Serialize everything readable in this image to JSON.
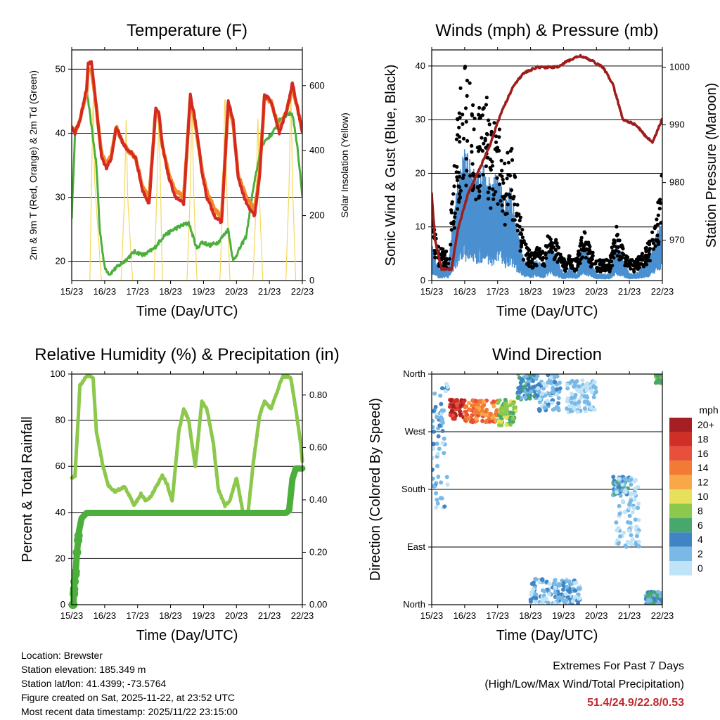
{
  "colors": {
    "t2m": "#d42a20",
    "t9m": "#f08b2e",
    "td2m": "#4caf3c",
    "solar": "#f4d85a",
    "wind": "#4a8fd0",
    "gust": "#000000",
    "pressure": "#9e1c1c",
    "rh": "#8cc84b",
    "precip": "#4caf3c",
    "extremes": "#c0282d"
  },
  "chart_data": [
    {
      "id": "temperature",
      "type": "line",
      "title": "Temperature (F)",
      "xlabel": "Time (Day/UTC)",
      "ylabel": "2m & 9m T (Red, Orange) & 2m Td (Green)",
      "ylabel_right": "Solar Insolation (Yellow)",
      "x_ticks": [
        "15/23",
        "16/23",
        "17/23",
        "18/23",
        "19/23",
        "20/23",
        "21/23",
        "22/23"
      ],
      "xlim": [
        0,
        7
      ],
      "ylim": [
        17,
        53
      ],
      "y_ticks": [
        "20",
        "30",
        "40",
        "50"
      ],
      "y_tick_values": [
        20,
        30,
        40,
        50
      ],
      "ylim_right": [
        0,
        710
      ],
      "y_ticks_right": [
        "0",
        "200",
        "400",
        "600"
      ],
      "y_tick_values_right": [
        0,
        200,
        400,
        600
      ],
      "grid": true,
      "series": [
        {
          "name": "2m T",
          "x": [
            0,
            0.1,
            0.25,
            0.45,
            0.5,
            0.6,
            0.75,
            0.9,
            1.05,
            1.2,
            1.35,
            1.55,
            1.75,
            1.8,
            1.95,
            2.15,
            2.35,
            2.55,
            2.65,
            2.75,
            2.95,
            3.15,
            3.4,
            3.6,
            3.75,
            3.95,
            4.1,
            4.35,
            4.55,
            4.75,
            4.9,
            5.05,
            5.3,
            5.55,
            5.7,
            5.85,
            6.05,
            6.3,
            6.55,
            6.7,
            6.85,
            7.0
          ],
          "values": [
            41,
            40,
            42,
            47,
            51,
            51,
            44,
            36.5,
            34.5,
            36,
            41,
            38.5,
            37,
            37,
            36,
            31,
            29,
            44,
            43,
            38,
            33,
            30,
            29,
            46,
            42,
            34,
            30,
            27,
            26,
            45,
            42,
            33,
            29,
            27,
            33,
            46,
            45,
            40,
            44,
            48,
            44,
            40
          ]
        },
        {
          "name": "9m T",
          "x": [
            0,
            0.1,
            0.25,
            0.45,
            0.5,
            0.6,
            0.75,
            0.9,
            1.05,
            1.2,
            1.35,
            1.55,
            1.75,
            1.8,
            1.95,
            2.15,
            2.35,
            2.55,
            2.65,
            2.75,
            2.95,
            3.15,
            3.4,
            3.6,
            3.75,
            3.95,
            4.1,
            4.35,
            4.55,
            4.75,
            4.9,
            5.05,
            5.3,
            5.55,
            5.7,
            5.85,
            6.05,
            6.3,
            6.55,
            6.7,
            6.85,
            7.0
          ],
          "values": [
            41,
            40,
            42,
            46.5,
            50,
            50,
            44,
            37,
            35,
            36.5,
            41,
            38.5,
            37,
            37,
            36,
            31.5,
            30,
            43.5,
            42.5,
            38,
            33.5,
            31,
            30,
            45.5,
            41.5,
            34.5,
            31,
            28,
            27,
            44.5,
            41.5,
            33.5,
            30,
            28,
            33.5,
            45.5,
            45,
            40.5,
            44,
            47,
            44,
            40.5
          ]
        },
        {
          "name": "2m Td",
          "x": [
            0,
            0.1,
            0.25,
            0.45,
            0.55,
            0.75,
            0.85,
            1.0,
            1.15,
            1.35,
            1.6,
            1.9,
            2.2,
            2.5,
            2.8,
            3.1,
            3.3,
            3.55,
            3.8,
            3.95,
            4.2,
            4.45,
            4.6,
            4.75,
            4.9,
            5.1,
            5.3,
            5.5,
            5.75,
            5.9,
            6.1,
            6.3,
            6.55,
            6.7,
            6.85,
            7.0
          ],
          "values": [
            27,
            40,
            42,
            47,
            43,
            35,
            25,
            19,
            18,
            19,
            20,
            21.5,
            21,
            22,
            24,
            25,
            25.5,
            26,
            22,
            23,
            22.5,
            23,
            24,
            25,
            20,
            22,
            24,
            31,
            38,
            39,
            40,
            42,
            43,
            43,
            38,
            30
          ]
        },
        {
          "name": "Solar Insolation",
          "axis": "right",
          "x": [
            0.55,
            0.6,
            0.65,
            0.7,
            0.9,
            1.5,
            1.6,
            1.65,
            1.7,
            1.85,
            2.5,
            2.58,
            2.65,
            2.75,
            3.5,
            3.6,
            3.65,
            3.7,
            3.8,
            4.5,
            4.6,
            4.65,
            4.7,
            4.8,
            5.5,
            5.6,
            5.65,
            5.7,
            5.8,
            6.5,
            6.6,
            6.65,
            6.7,
            6.8
          ],
          "values": [
            0,
            300,
            580,
            300,
            0,
            0,
            250,
            500,
            250,
            0,
            0,
            260,
            520,
            0,
            0,
            280,
            560,
            280,
            0,
            0,
            300,
            600,
            300,
            0,
            0,
            250,
            520,
            250,
            0,
            0,
            300,
            600,
            300,
            0
          ]
        }
      ]
    },
    {
      "id": "winds",
      "type": "scatter",
      "title": "Winds (mph) & Pressure (mb)",
      "xlabel": "Time (Day/UTC)",
      "ylabel": "Sonic Wind & Gust (Blue, Black)",
      "ylabel_right": "Station Pressure (Maroon)",
      "x_ticks": [
        "15/23",
        "16/23",
        "17/23",
        "18/23",
        "19/23",
        "20/23",
        "21/23",
        "22/23"
      ],
      "xlim": [
        0,
        7
      ],
      "ylim": [
        0,
        43
      ],
      "y_ticks": [
        "0",
        "10",
        "20",
        "30",
        "40"
      ],
      "y_tick_values": [
        0,
        10,
        20,
        30,
        40
      ],
      "ylim_right": [
        963,
        1003
      ],
      "y_ticks_right": [
        "970",
        "980",
        "990",
        "1000"
      ],
      "y_tick_values_right": [
        970,
        980,
        990,
        1000
      ],
      "grid": true,
      "series": [
        {
          "name": "Gust",
          "x": [
            0,
            0.2,
            0.5,
            0.8,
            1.0,
            1.2,
            1.4,
            1.6,
            1.8,
            2.0,
            2.2,
            2.4,
            2.6,
            2.8,
            3.0,
            3.2,
            3.4,
            3.6,
            3.8,
            4.0,
            4.2,
            4.4,
            4.6,
            4.8,
            5.0,
            5.2,
            5.4,
            5.6,
            5.8,
            6.0,
            6.2,
            6.4,
            6.6,
            6.8,
            7.0
          ],
          "values": [
            10,
            5,
            4,
            25,
            32,
            28,
            24,
            30,
            22,
            26,
            18,
            22,
            12,
            6,
            4,
            5,
            4,
            8,
            6,
            3,
            4,
            3,
            8,
            5,
            3,
            3,
            3,
            8,
            5,
            3,
            3,
            4,
            6,
            9,
            16
          ]
        },
        {
          "name": "Sonic Wind",
          "x": [
            0,
            0.2,
            0.5,
            0.8,
            1.0,
            1.2,
            1.4,
            1.6,
            1.8,
            2.0,
            2.2,
            2.4,
            2.6,
            2.8,
            3.0,
            3.2,
            3.4,
            3.6,
            3.8,
            4.0,
            4.2,
            4.4,
            4.6,
            4.8,
            5.0,
            5.2,
            5.4,
            5.6,
            5.8,
            6.0,
            6.2,
            6.4,
            6.6,
            6.8,
            7.0
          ],
          "values": [
            5,
            2,
            2,
            14,
            18,
            16,
            14,
            16,
            13,
            15,
            11,
            13,
            7,
            3,
            2,
            3,
            2,
            5,
            3,
            1,
            2,
            1,
            5,
            3,
            1,
            1,
            1,
            5,
            3,
            1,
            1,
            2,
            3,
            6,
            9
          ]
        },
        {
          "name": "Station Pressure",
          "axis": "right",
          "x": [
            0,
            0.1,
            0.3,
            0.6,
            0.8,
            1.1,
            1.5,
            1.8,
            2.1,
            2.5,
            2.8,
            3.2,
            3.5,
            3.8,
            4.1,
            4.5,
            4.9,
            5.2,
            5.5,
            5.8,
            6.2,
            6.5,
            6.7,
            6.85,
            7.0
          ],
          "values": [
            978,
            970,
            965,
            965,
            972,
            978,
            983,
            987,
            992,
            997,
            999,
            1000,
            1000,
            1000,
            1001,
            1002,
            1001,
            1000,
            997,
            991,
            990,
            988,
            987,
            989,
            991
          ]
        }
      ]
    },
    {
      "id": "humidity",
      "type": "line",
      "title": "Relative Humidity (%) & Precipitation (in)",
      "xlabel": "Time (Day/UTC)",
      "ylabel": "Percent & Total Rainfall",
      "x_ticks": [
        "15/23",
        "16/23",
        "17/23",
        "18/23",
        "19/23",
        "20/23",
        "21/23",
        "22/23"
      ],
      "xlim": [
        0,
        7
      ],
      "ylim": [
        0,
        100
      ],
      "y_ticks": [
        "0",
        "20",
        "40",
        "60",
        "80",
        "100"
      ],
      "y_tick_values": [
        0,
        20,
        40,
        60,
        80,
        100
      ],
      "ylim_right": [
        0,
        0.88
      ],
      "y_ticks_right": [
        "0.00",
        "0.20",
        "0.40",
        "0.60",
        "0.80"
      ],
      "y_tick_values_right": [
        0,
        0.2,
        0.4,
        0.6,
        0.8
      ],
      "grid": true,
      "series": [
        {
          "name": "Relative Humidity",
          "x": [
            0,
            0.1,
            0.25,
            0.45,
            0.5,
            0.55,
            0.65,
            0.75,
            0.95,
            1.1,
            1.3,
            1.6,
            1.8,
            1.9,
            2.1,
            2.25,
            2.4,
            2.6,
            2.75,
            2.9,
            3.05,
            3.25,
            3.4,
            3.55,
            3.75,
            3.95,
            4.1,
            4.3,
            4.45,
            4.65,
            4.8,
            5.0,
            5.2,
            5.35,
            5.5,
            5.7,
            5.85,
            6.05,
            6.25,
            6.4,
            6.55,
            6.65,
            6.8,
            6.95,
            7.0
          ],
          "values": [
            55,
            56,
            95,
            99,
            99,
            99,
            98,
            75,
            60,
            52,
            49,
            51,
            46,
            43,
            48,
            45,
            47,
            52,
            56,
            52,
            45,
            75,
            85,
            80,
            60,
            88,
            85,
            70,
            50,
            43,
            45,
            55,
            40,
            40,
            60,
            82,
            88,
            85,
            93,
            99,
            99,
            98,
            85,
            70,
            62
          ]
        },
        {
          "name": "Total Precipitation",
          "axis": "right",
          "x": [
            0,
            0.05,
            0.08,
            0.12,
            0.16,
            0.22,
            0.3,
            0.45,
            0.6,
            1.0,
            2.0,
            3.0,
            4.0,
            5.0,
            5.5,
            5.9,
            6.2,
            6.5,
            6.6,
            6.65,
            6.7,
            6.8,
            6.9,
            7.0
          ],
          "values": [
            0,
            0,
            0.08,
            0.12,
            0.2,
            0.28,
            0.33,
            0.35,
            0.35,
            0.35,
            0.35,
            0.35,
            0.35,
            0.35,
            0.35,
            0.35,
            0.35,
            0.35,
            0.36,
            0.42,
            0.48,
            0.52,
            0.52,
            0.52
          ]
        }
      ]
    },
    {
      "id": "wind_direction",
      "type": "scatter",
      "title": "Wind Direction",
      "xlabel": "Time (Day/UTC)",
      "ylabel": "Direction (Colored By Speed)",
      "x_ticks": [
        "15/23",
        "16/23",
        "17/23",
        "18/23",
        "19/23",
        "20/23",
        "21/23",
        "22/23"
      ],
      "xlim": [
        0,
        7
      ],
      "ylim": [
        0,
        360
      ],
      "y_ticks": [
        "North",
        "East",
        "South",
        "West",
        "North"
      ],
      "y_tick_values": [
        0,
        90,
        180,
        270,
        360
      ],
      "grid": true,
      "legend": {
        "title": "mph",
        "placement": "right",
        "labels": [
          "20+",
          "18",
          "16",
          "14",
          "12",
          "10",
          "8",
          "6",
          "4",
          "2",
          "0"
        ],
        "colors": [
          "#a51e22",
          "#cf2f26",
          "#e7503a",
          "#f37a35",
          "#f9a847",
          "#e6e05a",
          "#8cc84b",
          "#48a86c",
          "#3f85c6",
          "#7ab8e6",
          "#bfe3f7"
        ]
      },
      "clusters": [
        {
          "x": [
            0.0,
            0.5
          ],
          "y": [
            150,
            350
          ],
          "speed": 2
        },
        {
          "x": [
            0.55,
            1.0
          ],
          "y": [
            290,
            320
          ],
          "speed": 18
        },
        {
          "x": [
            1.0,
            2.0
          ],
          "y": [
            285,
            320
          ],
          "speed": 14
        },
        {
          "x": [
            2.0,
            2.55
          ],
          "y": [
            280,
            320
          ],
          "speed": 8
        },
        {
          "x": [
            2.6,
            3.2
          ],
          "y": [
            320,
            360
          ],
          "speed": 4
        },
        {
          "x": [
            3.2,
            3.9
          ],
          "y": [
            300,
            360
          ],
          "speed": 2
        },
        {
          "x": [
            4.1,
            5.0
          ],
          "y": [
            300,
            350
          ],
          "speed": 1
        },
        {
          "x": [
            5.5,
            6.0
          ],
          "y": [
            170,
            200
          ],
          "speed": 4
        },
        {
          "x": [
            5.6,
            6.3
          ],
          "y": [
            90,
            200
          ],
          "speed": 1
        },
        {
          "x": [
            3.0,
            4.5
          ],
          "y": [
            0,
            40
          ],
          "speed": 2
        },
        {
          "x": [
            6.5,
            7.0
          ],
          "y": [
            0,
            20
          ],
          "speed": 4
        },
        {
          "x": [
            6.8,
            7.0
          ],
          "y": [
            345,
            360
          ],
          "speed": 7
        }
      ]
    }
  ],
  "info": {
    "location": "Location: Brewster",
    "elevation": "Station elevation: 185.349 m",
    "latlon": "Station lat/lon: 41.4399; -73.5764",
    "created": "Figure created on Sat, 2025-11-22, at 23:52 UTC",
    "recent": "Most recent data timestamp: 2025/11/22 23:15:00"
  },
  "extremes": {
    "title": "Extremes For Past 7 Days",
    "subtitle": "(High/Low/Max Wind/Total Precipitation)",
    "values": "51.4/24.9/22.8/0.53"
  }
}
